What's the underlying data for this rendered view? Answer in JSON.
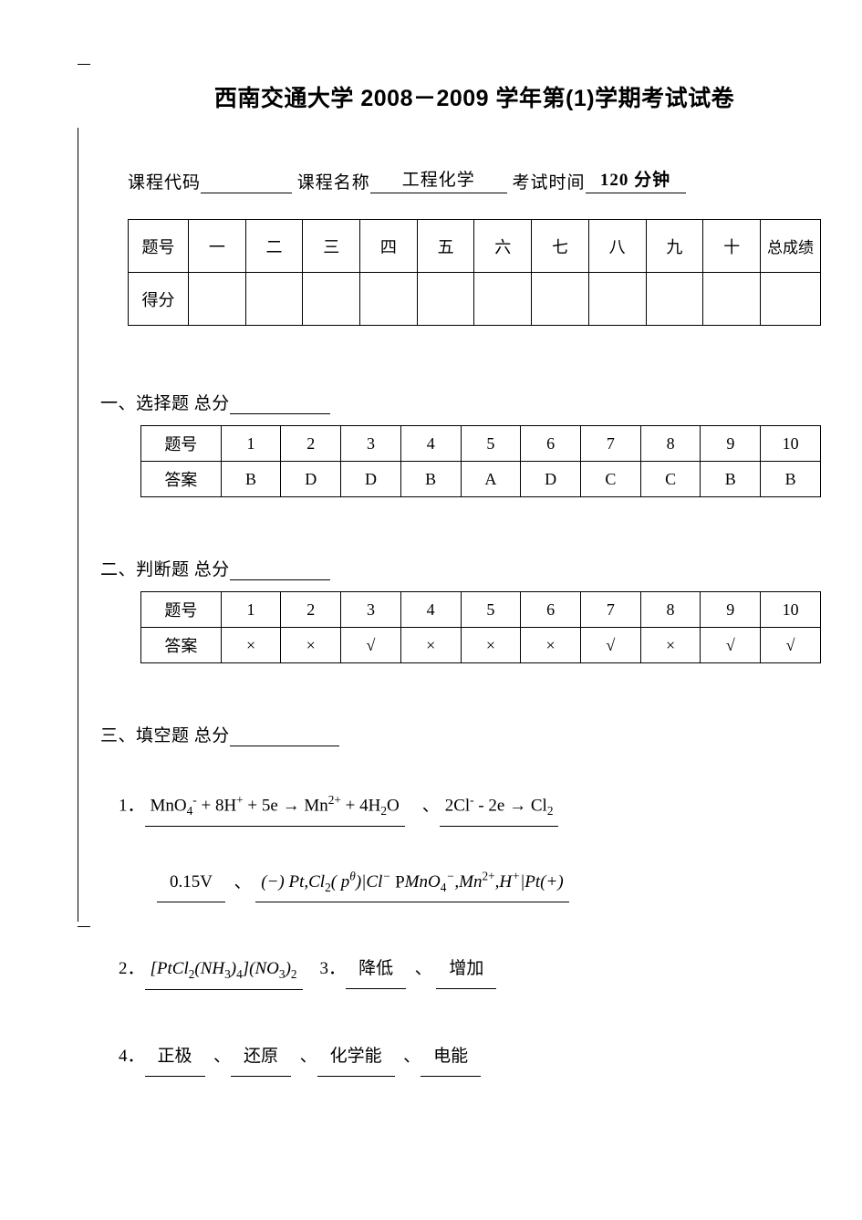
{
  "title": "西南交通大学 2008－2009 学年第(1)学期考试试卷",
  "info_labels": {
    "code": "课程代码",
    "name": "课程名称",
    "name_value": "工程化学",
    "time": "考试时间",
    "time_value": "120 分钟"
  },
  "score_table": {
    "row1": [
      "题号",
      "一",
      "二",
      "三",
      "四",
      "五",
      "六",
      "七",
      "八",
      "九",
      "十",
      "总成绩"
    ],
    "row2_label": "得分"
  },
  "section1": {
    "header": "一、选择题   总分",
    "row_label": "题号",
    "ans_label": "答案",
    "nums": [
      "1",
      "2",
      "3",
      "4",
      "5",
      "6",
      "7",
      "8",
      "9",
      "10"
    ],
    "answers": [
      "B",
      "D",
      "D",
      "B",
      "A",
      "D",
      "C",
      "C",
      "B",
      "B"
    ]
  },
  "section2": {
    "header": "二、判断题   总分",
    "row_label": "题号",
    "ans_label": "答案",
    "nums": [
      "1",
      "2",
      "3",
      "4",
      "5",
      "6",
      "7",
      "8",
      "9",
      "10"
    ],
    "answers": [
      "×",
      "×",
      "√",
      "×",
      "×",
      "×",
      "√",
      "×",
      "√",
      "√"
    ]
  },
  "section3_header": "三、填空题   总分",
  "q1_num": "1．",
  "q1_punct": "、",
  "q1_eq1_html": "MnO<sub>4</sub><sup>-</sup> + 8H<sup>+</sup> + 5e → Mn<sup>2+</sup> + 4H<sub>2</sub>O",
  "q1_eq2_html": "2Cl<sup>-</sup> - 2e → Cl<sub>2</sub>",
  "q1_line2_a": "0.15V",
  "q1_line2_b_html": "<span class=\"eq-i\">(−) Pt,Cl<sub class=\"nm\">2</sub>( p<sup>θ</sup>)|Cl<sup>−</sup> </span>P<span class=\"eq-i\">MnO<sub class=\"nm\">4</sub><sup>−</sup>,Mn<sup class=\"nm\">2+</sup>,H<sup>+</sup>|Pt(+)</span>",
  "q2_num": "2．",
  "q2_eq_html": "<span class=\"eq-i\">[PtCl<sub class=\"nm\">2</sub>(NH<sub class=\"nm\">3</sub>)<sub class=\"nm\">4</sub>](NO<sub class=\"nm\">3</sub>)<sub class=\"nm\">2</sub></span>",
  "q3_num": "3．",
  "q3_a": "降低",
  "q3_b": "增加",
  "q4_num": "4．",
  "q4_a": "正极",
  "q4_b": "还原",
  "q4_c": "化学能",
  "q4_d": "电能"
}
